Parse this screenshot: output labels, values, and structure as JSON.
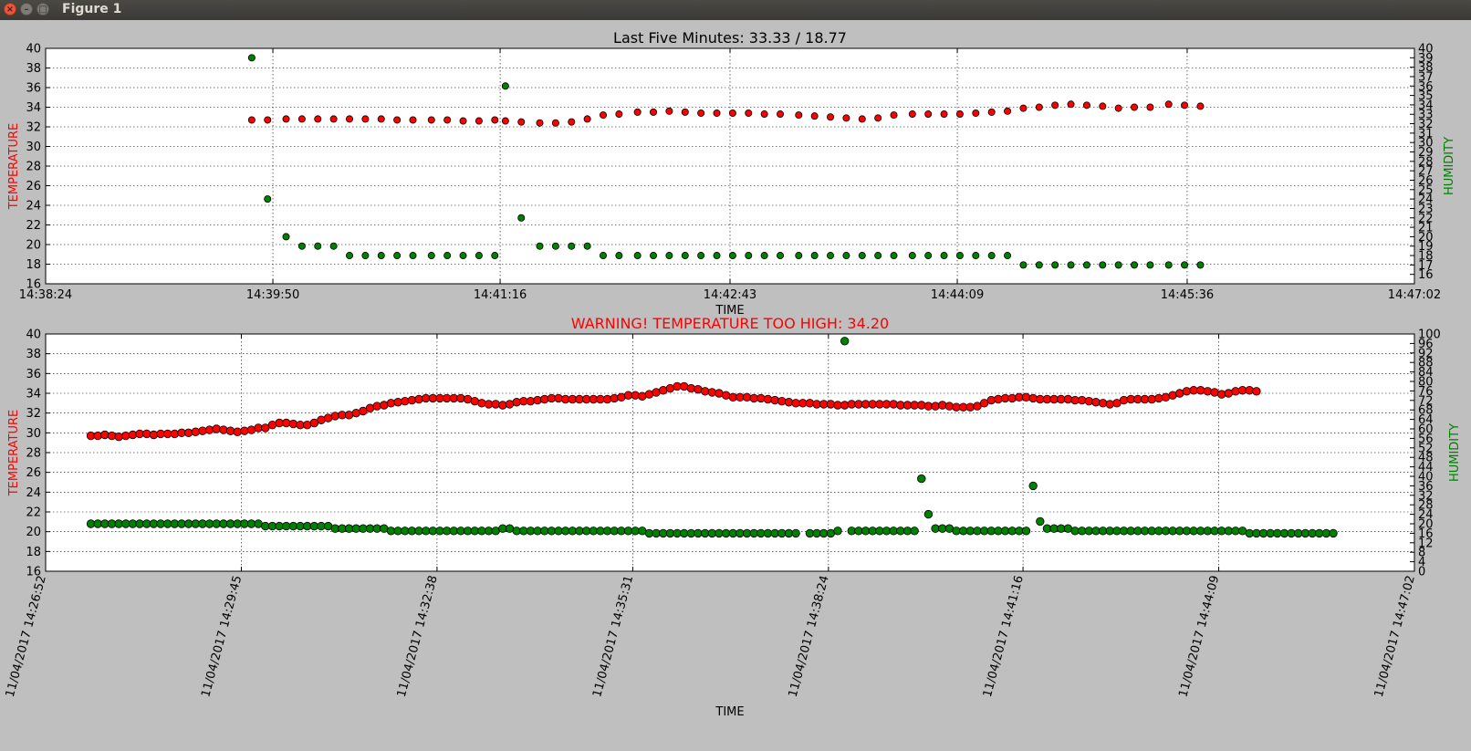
{
  "window": {
    "title": "Figure 1",
    "close_icon": "×",
    "minimize_icon": "–",
    "maximize_icon": "□",
    "titlebar_color": "#3c3b37"
  },
  "colors": {
    "temperature": "#ff0000",
    "humidity": "#008000",
    "warning_title": "#ff0000",
    "figure_bg": "#bfbfbf",
    "axes_bg": "#ffffff"
  },
  "chart_data": [
    {
      "type": "scatter",
      "title": "Last Five Minutes: 33.33 / 18.77",
      "title_color": "#000000",
      "xlabel": "TIME",
      "ylabel": "TEMPERATURE",
      "ylabel_right": "HUMIDITY",
      "ylim": [
        16,
        40
      ],
      "ylim_right": [
        15,
        40
      ],
      "yticks": [
        "16",
        "18",
        "20",
        "22",
        "24",
        "26",
        "28",
        "30",
        "32",
        "34",
        "36",
        "38",
        "40"
      ],
      "yticks_right": [
        "16",
        "17",
        "18",
        "19",
        "20",
        "21",
        "22",
        "23",
        "24",
        "25",
        "26",
        "27",
        "28",
        "29",
        "30",
        "31",
        "32",
        "33",
        "34",
        "35",
        "36",
        "37",
        "38",
        "39",
        "40"
      ],
      "xlim": [
        "14:38:24",
        "14:47:02"
      ],
      "xticks": [
        "14:38:24",
        "14:39:50",
        "14:41:16",
        "14:42:43",
        "14:44:09",
        "14:45:36",
        "14:47:02"
      ],
      "grid": true,
      "series": [
        {
          "name": "TEMPERATURE",
          "axis": "left",
          "color": "#ff0000",
          "points": [
            [
              "14:39:42",
              32.7
            ],
            [
              "14:39:48",
              32.7
            ],
            [
              "14:39:55",
              32.8
            ],
            [
              "14:40:01",
              32.8
            ],
            [
              "14:40:07",
              32.8
            ],
            [
              "14:40:13",
              32.8
            ],
            [
              "14:40:19",
              32.8
            ],
            [
              "14:40:25",
              32.8
            ],
            [
              "14:40:31",
              32.8
            ],
            [
              "14:40:37",
              32.7
            ],
            [
              "14:40:43",
              32.7
            ],
            [
              "14:40:50",
              32.7
            ],
            [
              "14:40:56",
              32.7
            ],
            [
              "14:41:02",
              32.6
            ],
            [
              "14:41:08",
              32.6
            ],
            [
              "14:41:14",
              32.7
            ],
            [
              "14:41:18",
              32.6
            ],
            [
              "14:41:24",
              32.5
            ],
            [
              "14:41:31",
              32.4
            ],
            [
              "14:41:37",
              32.4
            ],
            [
              "14:41:43",
              32.5
            ],
            [
              "14:41:49",
              32.8
            ],
            [
              "14:41:55",
              33.2
            ],
            [
              "14:42:01",
              33.3
            ],
            [
              "14:42:08",
              33.5
            ],
            [
              "14:42:14",
              33.5
            ],
            [
              "14:42:20",
              33.6
            ],
            [
              "14:42:26",
              33.5
            ],
            [
              "14:42:32",
              33.4
            ],
            [
              "14:42:38",
              33.4
            ],
            [
              "14:42:44",
              33.4
            ],
            [
              "14:42:50",
              33.4
            ],
            [
              "14:42:56",
              33.3
            ],
            [
              "14:43:02",
              33.3
            ],
            [
              "14:43:09",
              33.2
            ],
            [
              "14:43:15",
              33.1
            ],
            [
              "14:43:21",
              33.0
            ],
            [
              "14:43:27",
              32.9
            ],
            [
              "14:43:33",
              32.8
            ],
            [
              "14:43:39",
              32.9
            ],
            [
              "14:43:45",
              33.2
            ],
            [
              "14:43:52",
              33.3
            ],
            [
              "14:43:58",
              33.3
            ],
            [
              "14:44:04",
              33.3
            ],
            [
              "14:44:10",
              33.3
            ],
            [
              "14:44:16",
              33.4
            ],
            [
              "14:44:22",
              33.5
            ],
            [
              "14:44:28",
              33.6
            ],
            [
              "14:44:34",
              33.9
            ],
            [
              "14:44:40",
              34.0
            ],
            [
              "14:44:46",
              34.2
            ],
            [
              "14:44:52",
              34.3
            ],
            [
              "14:44:58",
              34.2
            ],
            [
              "14:45:04",
              34.1
            ],
            [
              "14:45:10",
              33.9
            ],
            [
              "14:45:16",
              34.0
            ],
            [
              "14:45:22",
              34.0
            ],
            [
              "14:45:29",
              34.3
            ],
            [
              "14:45:35",
              34.2
            ],
            [
              "14:45:41",
              34.1
            ]
          ]
        },
        {
          "name": "HUMIDITY",
          "axis": "right",
          "color": "#008000",
          "points": [
            [
              "14:39:42",
              39.0
            ],
            [
              "14:39:48",
              24.0
            ],
            [
              "14:39:55",
              20.0
            ],
            [
              "14:40:01",
              19.0
            ],
            [
              "14:40:07",
              19.0
            ],
            [
              "14:40:13",
              19.0
            ],
            [
              "14:40:19",
              18.0
            ],
            [
              "14:40:25",
              18.0
            ],
            [
              "14:40:31",
              18.0
            ],
            [
              "14:40:37",
              18.0
            ],
            [
              "14:40:43",
              18.0
            ],
            [
              "14:40:50",
              18.0
            ],
            [
              "14:40:56",
              18.0
            ],
            [
              "14:41:02",
              18.0
            ],
            [
              "14:41:08",
              18.0
            ],
            [
              "14:41:14",
              18.0
            ],
            [
              "14:41:18",
              36.0
            ],
            [
              "14:41:24",
              22.0
            ],
            [
              "14:41:31",
              19.0
            ],
            [
              "14:41:37",
              19.0
            ],
            [
              "14:41:43",
              19.0
            ],
            [
              "14:41:49",
              19.0
            ],
            [
              "14:41:55",
              18.0
            ],
            [
              "14:42:01",
              18.0
            ],
            [
              "14:42:08",
              18.0
            ],
            [
              "14:42:14",
              18.0
            ],
            [
              "14:42:20",
              18.0
            ],
            [
              "14:42:26",
              18.0
            ],
            [
              "14:42:32",
              18.0
            ],
            [
              "14:42:38",
              18.0
            ],
            [
              "14:42:44",
              18.0
            ],
            [
              "14:42:50",
              18.0
            ],
            [
              "14:42:56",
              18.0
            ],
            [
              "14:43:02",
              18.0
            ],
            [
              "14:43:09",
              18.0
            ],
            [
              "14:43:15",
              18.0
            ],
            [
              "14:43:21",
              18.0
            ],
            [
              "14:43:27",
              18.0
            ],
            [
              "14:43:33",
              18.0
            ],
            [
              "14:43:39",
              18.0
            ],
            [
              "14:43:45",
              18.0
            ],
            [
              "14:43:52",
              18.0
            ],
            [
              "14:43:58",
              18.0
            ],
            [
              "14:44:04",
              18.0
            ],
            [
              "14:44:10",
              18.0
            ],
            [
              "14:44:16",
              18.0
            ],
            [
              "14:44:22",
              18.0
            ],
            [
              "14:44:28",
              18.0
            ],
            [
              "14:44:34",
              17.0
            ],
            [
              "14:44:40",
              17.0
            ],
            [
              "14:44:46",
              17.0
            ],
            [
              "14:44:52",
              17.0
            ],
            [
              "14:44:58",
              17.0
            ],
            [
              "14:45:04",
              17.0
            ],
            [
              "14:45:10",
              17.0
            ],
            [
              "14:45:16",
              17.0
            ],
            [
              "14:45:22",
              17.0
            ],
            [
              "14:45:29",
              17.0
            ],
            [
              "14:45:35",
              17.0
            ],
            [
              "14:45:41",
              17.0
            ]
          ]
        }
      ]
    },
    {
      "type": "scatter",
      "title": "WARNING! TEMPERATURE TOO HIGH: 34.20",
      "title_color": "#ff0000",
      "xlabel": "TIME",
      "ylabel": "TEMPERATURE",
      "ylabel_right": "HUMIDITY",
      "ylim": [
        16,
        40
      ],
      "ylim_right": [
        0,
        100
      ],
      "yticks": [
        "16",
        "18",
        "20",
        "22",
        "24",
        "26",
        "28",
        "30",
        "32",
        "34",
        "36",
        "38",
        "40"
      ],
      "yticks_right": [
        "0",
        "4",
        "8",
        "12",
        "16",
        "20",
        "24",
        "28",
        "32",
        "36",
        "40",
        "44",
        "48",
        "52",
        "56",
        "60",
        "64",
        "68",
        "72",
        "76",
        "80",
        "84",
        "88",
        "92",
        "96",
        "100"
      ],
      "xlim": [
        "11/04/2017 14:26:52",
        "11/04/2017 14:47:02"
      ],
      "xticks": [
        "11/04/2017 14:26:52",
        "11/04/2017 14:29:45",
        "11/04/2017 14:32:38",
        "11/04/2017 14:35:31",
        "11/04/2017 14:38:24",
        "11/04/2017 14:41:16",
        "11/04/2017 14:44:09",
        "11/04/2017 14:47:02"
      ],
      "grid": true,
      "series": [
        {
          "name": "TEMPERATURE",
          "axis": "left",
          "color": "#ff0000",
          "t_start": "11/04/2017 14:27:32",
          "t_step_s": 6.17,
          "values": [
            29.7,
            29.7,
            29.8,
            29.7,
            29.6,
            29.7,
            29.8,
            29.9,
            29.9,
            29.8,
            29.9,
            29.9,
            29.9,
            30.0,
            30.0,
            30.1,
            30.2,
            30.3,
            30.4,
            30.3,
            30.2,
            30.1,
            30.2,
            30.3,
            30.5,
            30.5,
            30.8,
            31.0,
            31.0,
            30.9,
            30.8,
            30.8,
            31.0,
            31.3,
            31.5,
            31.7,
            31.8,
            31.8,
            32.0,
            32.2,
            32.5,
            32.7,
            32.8,
            33.0,
            33.1,
            33.2,
            33.3,
            33.4,
            33.5,
            33.5,
            33.5,
            33.5,
            33.5,
            33.5,
            33.4,
            33.2,
            33.0,
            32.9,
            32.9,
            32.8,
            32.9,
            33.1,
            33.2,
            33.2,
            33.3,
            33.4,
            33.5,
            33.5,
            33.4,
            33.4,
            33.4,
            33.4,
            33.4,
            33.4,
            33.4,
            33.5,
            33.6,
            33.8,
            33.8,
            33.7,
            33.9,
            34.1,
            34.3,
            34.5,
            34.7,
            34.7,
            34.5,
            34.4,
            34.2,
            34.1,
            34.0,
            33.8,
            33.6,
            33.6,
            33.6,
            33.5,
            33.5,
            33.4,
            33.3,
            33.2,
            33.1,
            33.0,
            33.0,
            33.0,
            32.9,
            32.9,
            32.9,
            32.8,
            32.8,
            32.9,
            32.9,
            32.9,
            32.9,
            32.9,
            32.9,
            32.9,
            32.8,
            32.8,
            32.8,
            32.8,
            32.7,
            32.7,
            32.8,
            32.7,
            32.6,
            32.6,
            32.6,
            32.7,
            33.0,
            33.3,
            33.4,
            33.5,
            33.5,
            33.6,
            33.6,
            33.5,
            33.4,
            33.4,
            33.4,
            33.4,
            33.4,
            33.3,
            33.3,
            33.2,
            33.1,
            33.0,
            32.9,
            33.0,
            33.3,
            33.4,
            33.4,
            33.4,
            33.4,
            33.5,
            33.6,
            33.8,
            34.0,
            34.2,
            34.3,
            34.3,
            34.2,
            34.1,
            33.9,
            34.0,
            34.2,
            34.3,
            34.3,
            34.2
          ]
        },
        {
          "name": "HUMIDITY",
          "axis": "right",
          "color": "#008000",
          "t_start": "11/04/2017 14:27:32",
          "t_step_s": 6.17,
          "values": [
            20,
            20,
            20,
            20,
            20,
            20,
            20,
            20,
            20,
            20,
            20,
            20,
            20,
            20,
            20,
            20,
            20,
            20,
            20,
            20,
            20,
            20,
            20,
            20,
            20,
            19,
            19,
            19,
            19,
            19,
            19,
            19,
            19,
            19,
            19,
            18,
            18,
            18,
            18,
            18,
            18,
            18,
            18,
            17,
            17,
            17,
            17,
            17,
            17,
            17,
            17,
            17,
            17,
            17,
            17,
            17,
            17,
            17,
            17,
            18,
            18,
            17,
            17,
            17,
            17,
            17,
            17,
            17,
            17,
            17,
            17,
            17,
            17,
            17,
            17,
            17,
            17,
            17,
            17,
            17,
            16,
            16,
            16,
            16,
            16,
            16,
            16,
            16,
            16,
            16,
            16,
            16,
            16,
            16,
            16,
            16,
            16,
            16,
            16,
            16,
            16,
            16,
            16,
            16,
            16,
            16,
            16,
            17,
            97,
            17,
            17,
            17,
            17,
            17,
            17,
            17,
            17,
            17,
            17,
            39,
            24,
            18,
            18,
            18,
            17,
            17,
            17,
            17,
            17,
            17,
            17,
            17,
            17,
            17,
            17,
            36,
            21,
            18,
            18,
            18,
            18,
            17,
            17,
            17,
            17,
            17,
            17,
            17,
            17,
            17,
            17,
            17,
            17,
            17,
            17,
            17,
            17,
            17,
            17,
            17,
            17,
            17,
            17,
            17,
            17,
            17,
            16,
            16,
            16,
            16,
            16,
            16,
            16,
            16,
            16,
            16,
            16,
            16,
            16
          ],
          "gaps": [
            102
          ]
        }
      ]
    }
  ]
}
